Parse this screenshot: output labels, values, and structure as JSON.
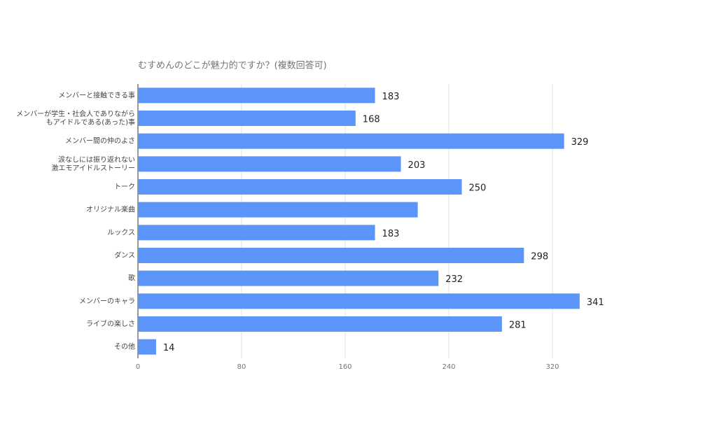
{
  "chart_data": {
    "type": "hbar",
    "title": "むすめんのどこが魅力的ですか？(複数回答可)",
    "categories": [
      [
        "メンバーと接触できる事"
      ],
      [
        "メンバーが学生・社会人でありながら",
        "もアイドルである(あった)事"
      ],
      [
        "メンバー間の仲のよさ"
      ],
      [
        "涙なしには振り返れない",
        "激エモアイドルストーリー"
      ],
      [
        "トーク"
      ],
      [
        "オリジナル楽曲"
      ],
      [
        "ルックス"
      ],
      [
        "ダンス"
      ],
      [
        "歌"
      ],
      [
        "メンバーのキャラ"
      ],
      [
        "ライブの楽しさ"
      ],
      [
        "その他"
      ]
    ],
    "values": [
      183,
      168,
      329,
      203,
      250,
      216,
      183,
      298,
      232,
      341,
      281,
      14
    ],
    "value_labels": [
      "183",
      "168",
      "329",
      "203",
      "250",
      null,
      "183",
      "298",
      "232",
      "341",
      "281",
      "14"
    ],
    "color": "#5b95f9",
    "xlim": [
      0,
      350
    ],
    "xticks": [
      0,
      80,
      160,
      240,
      320
    ],
    "grid": true
  }
}
